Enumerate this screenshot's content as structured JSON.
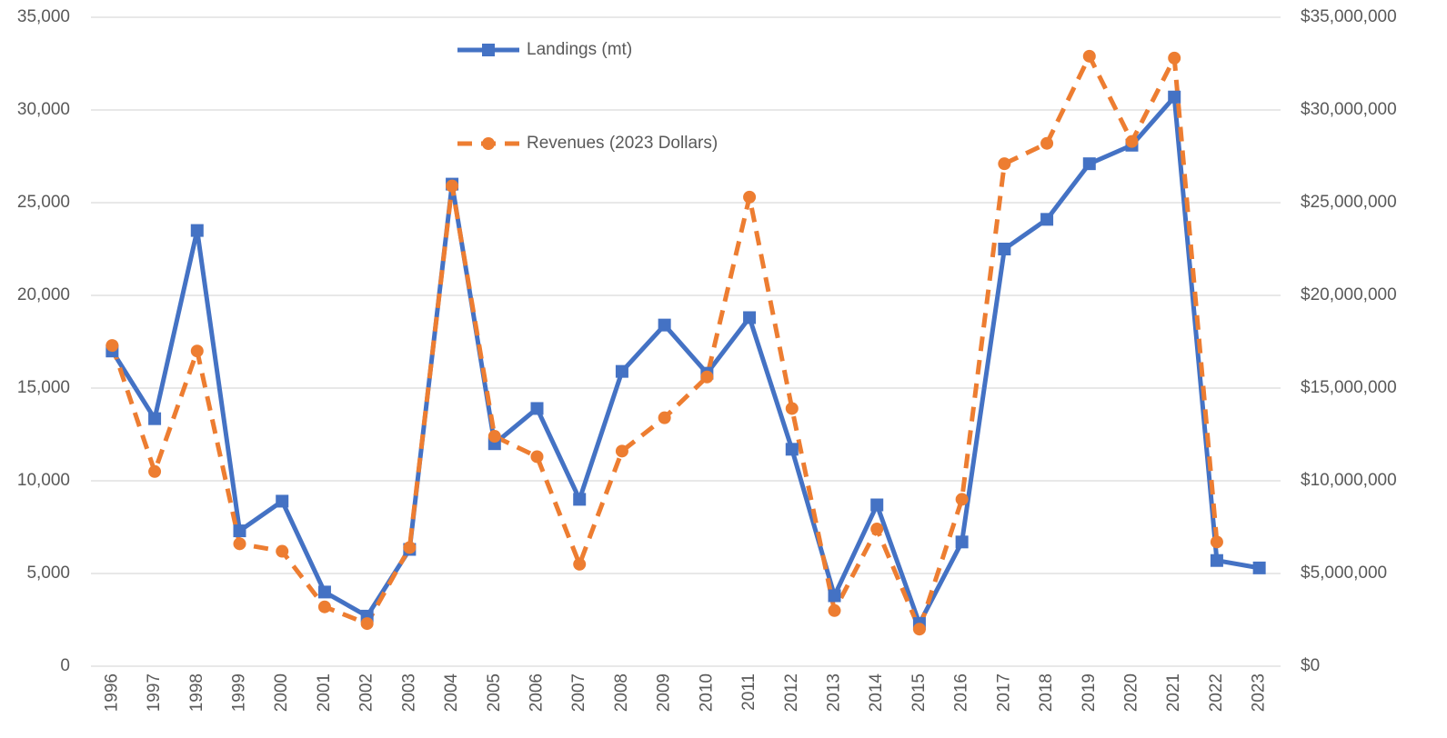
{
  "chart_data": {
    "type": "line",
    "categories": [
      "1996",
      "1997",
      "1998",
      "1999",
      "2000",
      "2001",
      "2002",
      "2003",
      "2004",
      "2005",
      "2006",
      "2007",
      "2008",
      "2009",
      "2010",
      "2011",
      "2012",
      "2013",
      "2014",
      "2015",
      "2016",
      "2017",
      "2018",
      "2019",
      "2020",
      "2021",
      "2022",
      "2023"
    ],
    "series": [
      {
        "name": "Landings (mt)",
        "color": "#4472c4",
        "marker": "square",
        "dashed": false,
        "values": [
          17000,
          13350,
          23500,
          7300,
          8900,
          4000,
          2700,
          6300,
          26000,
          12000,
          13900,
          9000,
          15900,
          18400,
          15800,
          18800,
          11700,
          3800,
          8700,
          2300,
          6700,
          22500,
          24100,
          27100,
          28100,
          30700,
          5700,
          5300
        ]
      },
      {
        "name": "Revenues (2023 Dollars)",
        "color": "#ed7d31",
        "marker": "circle",
        "dashed": true,
        "axis": "y2",
        "values": [
          17300000,
          10500000,
          17000000,
          6600000,
          6200000,
          3200000,
          2300000,
          6400000,
          25900000,
          12400000,
          11300000,
          5500000,
          11600000,
          13400000,
          15600000,
          25300000,
          13900000,
          3000000,
          7400000,
          2000000,
          9000000,
          27100000,
          28200000,
          32900000,
          28300000,
          32800000,
          6700000,
          null
        ]
      }
    ],
    "ylim": [
      0,
      35000
    ],
    "yticks": [
      0,
      {
        "value": 5000,
        "label": "5,000"
      },
      {
        "value": 10000,
        "label": "10,000"
      },
      {
        "value": 15000,
        "label": "15,000"
      },
      {
        "value": 20000,
        "label": "20,000"
      },
      {
        "value": 25000,
        "label": "25,000"
      },
      {
        "value": 30000,
        "label": "30,000"
      },
      {
        "value": 35000,
        "label": "35,000"
      }
    ],
    "y2lim": [
      0,
      35000000
    ],
    "y2ticks": [
      {
        "value": 0,
        "label": "$0"
      },
      {
        "value": 5000000,
        "label": "$5,000,000"
      },
      {
        "value": 10000000,
        "label": "$10,000,000"
      },
      {
        "value": 15000000,
        "label": "$15,000,000"
      },
      {
        "value": 20000000,
        "label": "$20,000,000"
      },
      {
        "value": 25000000,
        "label": "$25,000,000"
      },
      {
        "value": 30000000,
        "label": "$30,000,000"
      },
      {
        "value": 35000000,
        "label": "$35,000,000"
      }
    ],
    "grid": true,
    "legend": "top"
  }
}
